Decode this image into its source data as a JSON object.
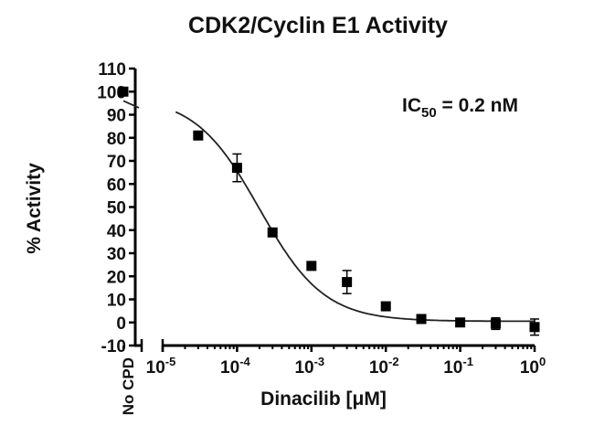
{
  "chart_data": {
    "type": "scatter",
    "title": "CDK2/Cyclin E1 Activity",
    "xlabel": "Dinacilib [μM]",
    "ylabel": "% Activity",
    "annotation": {
      "prefix": "IC",
      "subscript": "50",
      "suffix": " = 0.2 nM"
    },
    "x_scale": "log",
    "xlim": [
      1e-05,
      1
    ],
    "ylim": [
      -10,
      110
    ],
    "y_ticks": [
      -10,
      0,
      10,
      20,
      30,
      40,
      50,
      60,
      70,
      80,
      90,
      100,
      110
    ],
    "x_ticks": [
      {
        "value": 1e-05,
        "base": "10",
        "exp": "-5"
      },
      {
        "value": 0.0001,
        "base": "10",
        "exp": "-4"
      },
      {
        "value": 0.001,
        "base": "10",
        "exp": "-3"
      },
      {
        "value": 0.01,
        "base": "10",
        "exp": "-2"
      },
      {
        "value": 0.1,
        "base": "10",
        "exp": "-1"
      },
      {
        "value": 1,
        "base": "10",
        "exp": "0"
      }
    ],
    "control": {
      "label": "No CPD",
      "y": 100,
      "err": 0
    },
    "points": [
      {
        "x": 3e-05,
        "y": 81,
        "err": 1
      },
      {
        "x": 0.0001,
        "y": 67,
        "err": 6
      },
      {
        "x": 0.0003,
        "y": 39,
        "err": 1
      },
      {
        "x": 0.001,
        "y": 24.5,
        "err": 1
      },
      {
        "x": 0.003,
        "y": 17.5,
        "err": 5
      },
      {
        "x": 0.01,
        "y": 7,
        "err": 1
      },
      {
        "x": 0.03,
        "y": 1.5,
        "err": 1
      },
      {
        "x": 0.1,
        "y": 0,
        "err": 1.5
      },
      {
        "x": 0.3,
        "y": -0.5,
        "err": 2.5
      },
      {
        "x": 1,
        "y": -2,
        "err": 3.5
      }
    ],
    "fit": {
      "model": "4PL",
      "top": 98,
      "bottom": 0.5,
      "ic50_uM": 0.0002,
      "hill": 1.0
    },
    "colors": {
      "marks": "#000000",
      "curve": "#222222"
    },
    "grid": false,
    "legend": "none"
  }
}
